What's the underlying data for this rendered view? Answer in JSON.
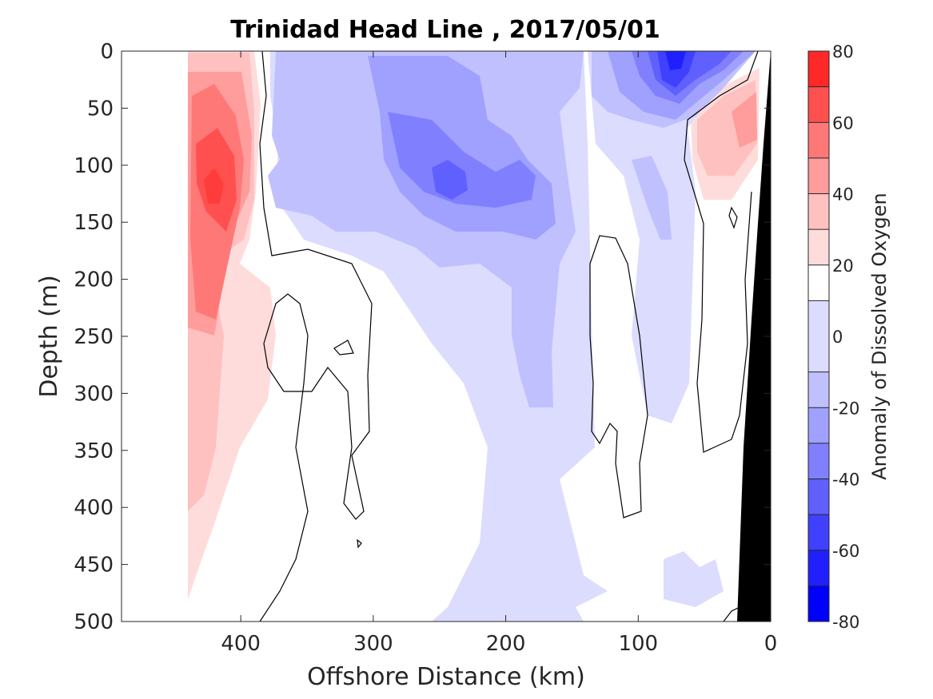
{
  "chart_data": {
    "type": "filled-contour",
    "title": "Trinidad Head Line , 2017/05/01",
    "xlabel": "Offshore Distance (km)",
    "ylabel": "Depth (m)",
    "xlim": [
      490,
      0
    ],
    "ylim": [
      0,
      500
    ],
    "x_reversed": true,
    "y_reversed": true,
    "xticks": [
      400,
      300,
      200,
      100,
      0
    ],
    "yticks": [
      0,
      50,
      100,
      150,
      200,
      250,
      300,
      350,
      400,
      450,
      500
    ],
    "colorbar": {
      "label": "Anomaly of Dissolved Oxygen",
      "ticks": [
        80,
        60,
        40,
        20,
        0,
        -20,
        -40,
        -60,
        -80
      ],
      "levels": [
        -80,
        -70,
        -60,
        -50,
        -40,
        -30,
        -20,
        -10,
        10,
        20,
        30,
        40,
        50,
        60,
        70,
        80
      ],
      "colors": [
        "#0000ff",
        "#2020ff",
        "#4040ff",
        "#6060ff",
        "#8080ff",
        "#a0a0ff",
        "#c0c0ff",
        "#dcdcff",
        "#ffffff",
        "#ffdcdc",
        "#ffc0c0",
        "#ff9c9c",
        "#ff7878",
        "#ff5050",
        "#ff2828",
        "#ff0000"
      ]
    },
    "regions": [
      {
        "name": "coastal-upper-positive-anomaly",
        "x_range": [
          440,
          385
        ],
        "depth_range": [
          20,
          480
        ],
        "max_anomaly": 70,
        "center": [
          420,
          125
        ]
      },
      {
        "name": "nearshore-positive-anomaly",
        "x_range": [
          65,
          10
        ],
        "depth_range": [
          40,
          170
        ],
        "max_anomaly": 40,
        "center": [
          40,
          90
        ]
      },
      {
        "name": "offshore-negative-core",
        "x_range": [
          280,
          160
        ],
        "depth_range": [
          0,
          310
        ],
        "min_anomaly": -50,
        "center": [
          240,
          115
        ]
      },
      {
        "name": "surface-negative-core",
        "x_range": [
          100,
          20
        ],
        "depth_range": [
          0,
          70
        ],
        "min_anomaly": -70,
        "center": [
          75,
          10
        ]
      },
      {
        "name": "deep-negative-column",
        "x_range": [
          290,
          140
        ],
        "depth_range": [
          300,
          500
        ],
        "min_anomaly": -20
      }
    ],
    "zero_contour": "black line",
    "bathymetry": "black shelf near 0-30 km offshore"
  }
}
